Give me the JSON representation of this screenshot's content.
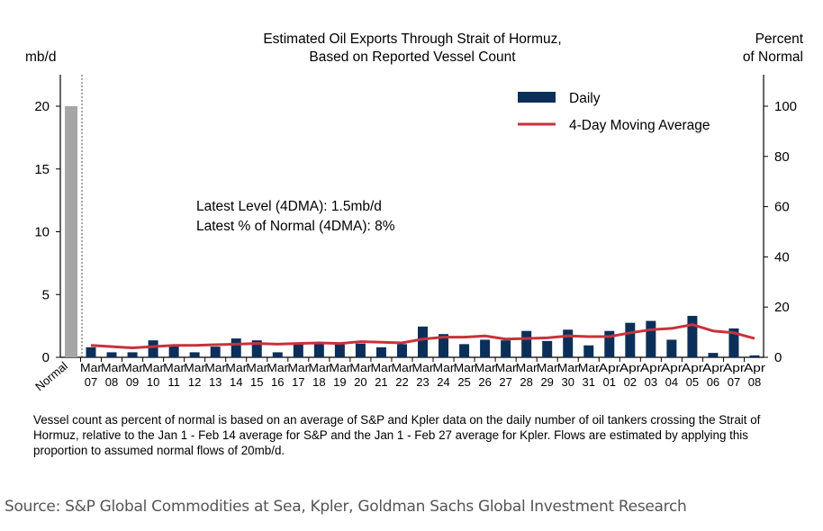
{
  "chart_data": {
    "type": "bar",
    "title": "Estimated Oil Exports Through Strait of Hormuz,\nBased on Reported Vessel Count",
    "title_lines": [
      "Estimated Oil Exports Through Strait of Hormuz,",
      "Based on Reported Vessel Count"
    ],
    "ylabel_left": "mb/d",
    "ylabel_right_lines": [
      "Percent",
      "of Normal"
    ],
    "ylim_left": [
      0,
      22.5
    ],
    "ylim_right": [
      0,
      112.5
    ],
    "yticks_left": [
      0,
      5,
      10,
      15,
      20
    ],
    "yticks_right": [
      0,
      20,
      40,
      60,
      80,
      100
    ],
    "normal": {
      "label": "Normal",
      "value": 20,
      "color": "#a6a6a6"
    },
    "categories": [
      [
        "Mar",
        "07"
      ],
      [
        "Mar",
        "08"
      ],
      [
        "Mar",
        "09"
      ],
      [
        "Mar",
        "10"
      ],
      [
        "Mar",
        "11"
      ],
      [
        "Mar",
        "12"
      ],
      [
        "Mar",
        "13"
      ],
      [
        "Mar",
        "14"
      ],
      [
        "Mar",
        "15"
      ],
      [
        "Mar",
        "16"
      ],
      [
        "Mar",
        "17"
      ],
      [
        "Mar",
        "18"
      ],
      [
        "Mar",
        "19"
      ],
      [
        "Mar",
        "20"
      ],
      [
        "Mar",
        "21"
      ],
      [
        "Mar",
        "22"
      ],
      [
        "Mar",
        "23"
      ],
      [
        "Mar",
        "24"
      ],
      [
        "Mar",
        "25"
      ],
      [
        "Mar",
        "26"
      ],
      [
        "Mar",
        "27"
      ],
      [
        "Mar",
        "28"
      ],
      [
        "Mar",
        "29"
      ],
      [
        "Mar",
        "30"
      ],
      [
        "Mar",
        "31"
      ],
      [
        "Apr",
        "01"
      ],
      [
        "Apr",
        "02"
      ],
      [
        "Apr",
        "03"
      ],
      [
        "Apr",
        "04"
      ],
      [
        "Apr",
        "05"
      ],
      [
        "Apr",
        "06"
      ],
      [
        "Apr",
        "07"
      ],
      [
        "Apr",
        "08"
      ]
    ],
    "series": [
      {
        "name": "Daily",
        "type": "bar",
        "color": "#0c2f5a",
        "values": [
          0.8,
          0.4,
          0.4,
          1.35,
          1.0,
          0.4,
          0.85,
          1.5,
          1.35,
          0.4,
          1.05,
          1.05,
          1.05,
          1.1,
          0.8,
          1.05,
          2.45,
          1.85,
          1.05,
          1.4,
          1.35,
          2.1,
          1.3,
          2.2,
          0.95,
          2.1,
          2.75,
          2.9,
          1.4,
          3.3,
          0.35,
          2.3,
          0.15
        ]
      },
      {
        "name": "4-Day Moving Average",
        "type": "line",
        "color": "#c8323c",
        "values": [
          0.95,
          0.85,
          0.75,
          0.85,
          0.95,
          0.95,
          1.0,
          1.05,
          1.1,
          1.05,
          1.1,
          1.15,
          1.1,
          1.25,
          1.2,
          1.15,
          1.45,
          1.6,
          1.6,
          1.7,
          1.45,
          1.5,
          1.55,
          1.7,
          1.65,
          1.65,
          1.95,
          2.2,
          2.3,
          2.6,
          2.1,
          1.95,
          1.5
        ]
      }
    ],
    "legend": {
      "placement": "top-right",
      "entries": [
        "Daily",
        "4-Day Moving Average"
      ]
    },
    "annotation_lines": [
      "Latest Level (4DMA): 1.5mb/d",
      "Latest % of Normal (4DMA): 8%"
    ],
    "grid": false
  },
  "footnote": "Vessel count as percent of normal is based on an average of S&P and Kpler data on the daily number of oil tankers crossing the Strait of Hormuz, relative to the Jan 1 - Feb 14 average for S&P and the Jan 1 - Feb 27 average for Kpler. Flows are estimated by applying this proportion to assumed normal flows of 20mb/d.",
  "source": "Source: S&P Global Commodities at Sea, Kpler, Goldman Sachs Global Investment Research"
}
